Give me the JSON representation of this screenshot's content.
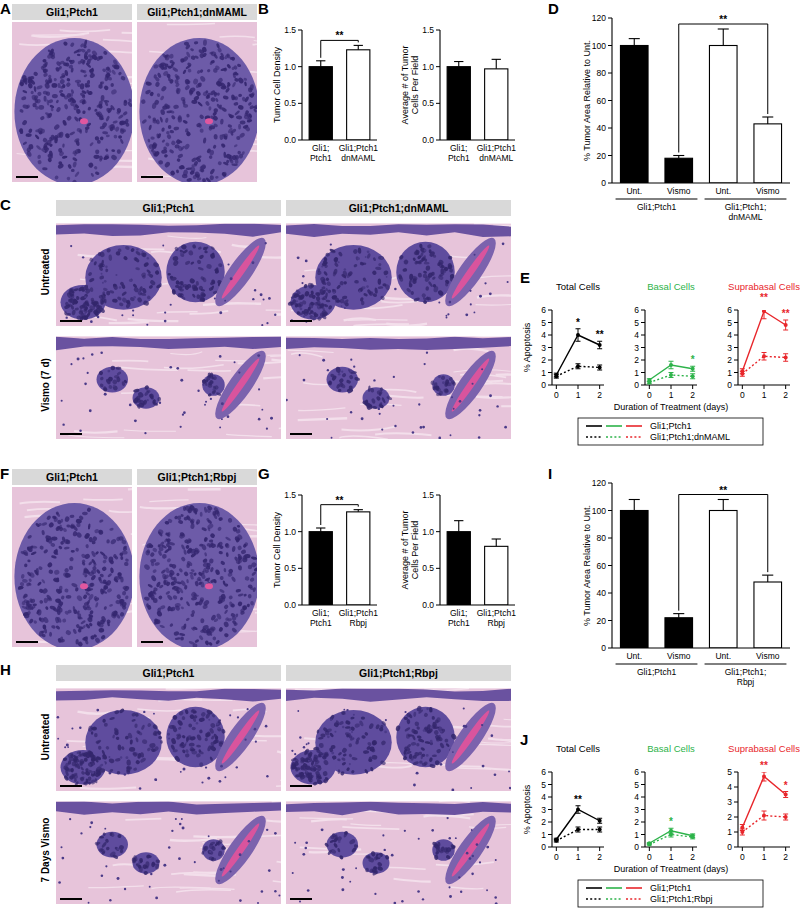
{
  "panel_labels": [
    "A",
    "B",
    "C",
    "D",
    "E",
    "F",
    "G",
    "H",
    "I",
    "J"
  ],
  "image_panels": [
    {
      "headers": [
        "Gli1;Ptch1",
        "Gli1;Ptch1;dnMAML"
      ]
    },
    {
      "headers": [
        "Gli1;Ptch1",
        "Gli1;Ptch1;dnMAML"
      ],
      "row_labels": [
        "Untreated",
        "Vismo (7 d)"
      ]
    },
    {
      "headers": [
        "Gli1;Ptch1",
        "Gli1;Ptch1;Rbpj"
      ]
    },
    {
      "headers": [
        "Gli1;Ptch1",
        "Gli1;Ptch1;Rbpj"
      ],
      "row_labels": [
        "Untreated",
        "7 Days Vismo"
      ]
    }
  ],
  "line_groups": [
    {
      "xlabel": "Duration of Treatment (days)",
      "legend": [
        {
          "label": "Gli1;Ptch1",
          "colors": [
            "#000000",
            "#2db34a",
            "#e8262b"
          ],
          "line_style": "solid"
        },
        {
          "label": "Gli1;Ptch1;dnMAML",
          "colors": [
            "#000000",
            "#2db34a",
            "#e8262b"
          ],
          "line_style": "dotted"
        }
      ]
    },
    {
      "xlabel": "Duration of Treatment (days)",
      "legend": [
        {
          "label": "Gli1;Ptch1",
          "colors": [
            "#000000",
            "#2db34a",
            "#e8262b"
          ],
          "line_style": "solid"
        },
        {
          "label": "Gli1;Ptch1;Rbpj",
          "colors": [
            "#000000",
            "#2db34a",
            "#e8262b"
          ],
          "line_style": "dotted"
        }
      ]
    }
  ],
  "chart_data": [
    {
      "type": "bar",
      "ylabel": "Tumor Cell Density",
      "categories": [
        "Gli1;\nPtch1",
        "Gli1;Ptch1\ndnMAML"
      ],
      "values": [
        1.0,
        1.23
      ],
      "errors": [
        0.08,
        0.06
      ],
      "colors": [
        "#000000",
        "#ffffff"
      ],
      "ylim": [
        0,
        1.5
      ],
      "yticks": [
        {
          "value": 0,
          "label": "0.0"
        },
        0.5,
        {
          "value": 1,
          "label": "1.0"
        },
        1.5
      ],
      "annotations": [
        {
          "text": "**",
          "from": 0,
          "to": 1
        }
      ]
    },
    {
      "type": "bar",
      "ylabel": "Average # of Tumor\nCells Per Field",
      "categories": [
        "Gli1;\nPtch1",
        "Gli1;Ptch1\ndnMAML"
      ],
      "values": [
        1.0,
        0.97
      ],
      "errors": [
        0.07,
        0.13
      ],
      "colors": [
        "#000000",
        "#ffffff"
      ],
      "ylim": [
        0,
        1.5
      ],
      "yticks": [
        {
          "value": 0,
          "label": "0.0"
        },
        0.5,
        {
          "value": 1,
          "label": "1.0"
        },
        1.5
      ]
    },
    {
      "type": "bar",
      "ylabel": "% Tumor Area Relative to Unt.",
      "categories": [
        "Unt.",
        "Vismo",
        "Unt.",
        "Vismo"
      ],
      "groups": [
        {
          "label": "Gli1;Ptch1",
          "from": 0,
          "to": 1
        },
        {
          "label": "Gli1;Ptch1;\ndnMAML",
          "from": 2,
          "to": 3
        }
      ],
      "values": [
        100,
        18,
        100,
        43
      ],
      "errors": [
        5,
        2,
        12,
        5
      ],
      "colors": [
        "#000000",
        "#000000",
        "#ffffff",
        "#ffffff"
      ],
      "ylim": [
        0,
        120
      ],
      "yticks": [
        0,
        20,
        40,
        60,
        80,
        100,
        120
      ],
      "annotations": [
        {
          "text": "**",
          "from": 1,
          "to": 3
        }
      ]
    },
    {
      "type": "line",
      "title": "Total Cells",
      "ylabel": "% Apoptosis",
      "x": [
        0,
        1,
        2
      ],
      "xlim": [
        -0.2,
        2.2
      ],
      "xticks": [
        0,
        1,
        2
      ],
      "ylim": [
        0,
        6
      ],
      "yticks": [
        0,
        1,
        2,
        3,
        4,
        5,
        6
      ],
      "series": [
        {
          "color": "#000000",
          "line_style": "solid",
          "marker": "circle",
          "values": [
            0.8,
            4.0,
            3.2
          ],
          "errors": [
            0.15,
            0.5,
            0.3
          ]
        },
        {
          "color": "#000000",
          "line_style": "dotted",
          "marker": "circle",
          "values": [
            0.7,
            1.5,
            1.4
          ],
          "errors": [
            0.15,
            0.2,
            0.2
          ]
        }
      ],
      "annotations": [
        {
          "text": "*",
          "x": 1
        },
        {
          "text": "**",
          "x": 2
        }
      ]
    },
    {
      "type": "line",
      "title": "Basal Cells",
      "x": [
        0,
        1,
        2
      ],
      "xlim": [
        -0.2,
        2.2
      ],
      "xticks": [
        0,
        1,
        2
      ],
      "ylim": [
        0,
        6
      ],
      "yticks": [
        0,
        1,
        2,
        3,
        4,
        5,
        6
      ],
      "series": [
        {
          "color": "#2db34a",
          "line_style": "solid",
          "marker": "circle",
          "values": [
            0.4,
            1.6,
            1.3
          ],
          "errors": [
            0.1,
            0.3,
            0.2
          ]
        },
        {
          "color": "#2db34a",
          "line_style": "dotted",
          "marker": "circle",
          "values": [
            0.2,
            0.8,
            0.7
          ],
          "errors": [
            0.1,
            0.2,
            0.2
          ]
        }
      ],
      "annotations": [
        {
          "text": "*",
          "x": 2
        }
      ]
    },
    {
      "type": "line",
      "title": "Suprabasal Cells",
      "x": [
        0,
        1,
        2
      ],
      "xlim": [
        -0.2,
        2.2
      ],
      "xticks": [
        0,
        1,
        2
      ],
      "ylim": [
        0,
        6
      ],
      "yticks": [
        0,
        1,
        2,
        3,
        4,
        5,
        6
      ],
      "series": [
        {
          "color": "#e8262b",
          "line_style": "solid",
          "marker": "circle",
          "values": [
            1.1,
            5.9,
            4.8
          ],
          "errors": [
            0.2,
            0.6,
            0.4
          ]
        },
        {
          "color": "#e8262b",
          "line_style": "dotted",
          "marker": "circle",
          "values": [
            0.9,
            2.3,
            2.2
          ],
          "errors": [
            0.2,
            0.3,
            0.3
          ]
        }
      ],
      "annotations": [
        {
          "text": "**",
          "x": 1
        },
        {
          "text": "**",
          "x": 2
        }
      ]
    },
    {
      "type": "bar",
      "ylabel": "Tumor Cell Density",
      "categories": [
        "Gli1;\nPtch1",
        "Gli1;Ptch1\nRbpj"
      ],
      "values": [
        1.0,
        1.27
      ],
      "errors": [
        0.05,
        0.03
      ],
      "colors": [
        "#000000",
        "#ffffff"
      ],
      "ylim": [
        0,
        1.5
      ],
      "yticks": [
        {
          "value": 0,
          "label": "0.0"
        },
        0.5,
        {
          "value": 1,
          "label": "1.0"
        },
        1.5
      ],
      "annotations": [
        {
          "text": "**",
          "from": 0,
          "to": 1
        }
      ]
    },
    {
      "type": "bar",
      "ylabel": "Average # of Tumor\nCells Per Field",
      "categories": [
        "Gli1;\nPtch1",
        "Gli1;Ptch1\nRbpj"
      ],
      "values": [
        1.0,
        0.8
      ],
      "errors": [
        0.15,
        0.1
      ],
      "colors": [
        "#000000",
        "#ffffff"
      ],
      "ylim": [
        0,
        1.5
      ],
      "yticks": [
        {
          "value": 0,
          "label": "0.0"
        },
        0.5,
        {
          "value": 1,
          "label": "1.0"
        },
        1.5
      ]
    },
    {
      "type": "bar",
      "ylabel": "% Tumor Area Relative to Unt.",
      "categories": [
        "Unt.",
        "Vismo",
        "Unt.",
        "Vismo"
      ],
      "groups": [
        {
          "label": "Gli1;Ptch1",
          "from": 0,
          "to": 1
        },
        {
          "label": "Gli1;Ptch1;\nRbpj",
          "from": 2,
          "to": 3
        }
      ],
      "values": [
        100,
        22,
        100,
        48
      ],
      "errors": [
        8,
        3,
        8,
        5
      ],
      "colors": [
        "#000000",
        "#000000",
        "#ffffff",
        "#ffffff"
      ],
      "ylim": [
        0,
        120
      ],
      "yticks": [
        0,
        20,
        40,
        60,
        80,
        100,
        120
      ],
      "annotations": [
        {
          "text": "**",
          "from": 1,
          "to": 3
        }
      ]
    },
    {
      "type": "line",
      "title": "Total Cells",
      "ylabel": "% Apoptosis",
      "x": [
        0,
        1,
        2
      ],
      "xlim": [
        -0.2,
        2.2
      ],
      "xticks": [
        0,
        1,
        2
      ],
      "ylim": [
        0,
        6
      ],
      "yticks": [
        0,
        1,
        2,
        3,
        4,
        5,
        6
      ],
      "series": [
        {
          "color": "#000000",
          "line_style": "solid",
          "marker": "circle",
          "values": [
            0.6,
            3.0,
            2.1
          ],
          "errors": [
            0.1,
            0.3,
            0.2
          ]
        },
        {
          "color": "#000000",
          "line_style": "dotted",
          "marker": "circle",
          "values": [
            0.5,
            1.4,
            1.4
          ],
          "errors": [
            0.1,
            0.2,
            0.2
          ]
        }
      ],
      "annotations": [
        {
          "text": "**",
          "x": 1
        }
      ]
    },
    {
      "type": "line",
      "title": "Basal Cells",
      "x": [
        0,
        1,
        2
      ],
      "xlim": [
        -0.2,
        2.2
      ],
      "xticks": [
        0,
        1,
        2
      ],
      "ylim": [
        0,
        6
      ],
      "yticks": [
        0,
        1,
        2,
        3,
        4,
        5,
        6
      ],
      "series": [
        {
          "color": "#2db34a",
          "line_style": "solid",
          "marker": "circle",
          "values": [
            0.3,
            1.3,
            0.9
          ],
          "errors": [
            0.05,
            0.2,
            0.15
          ]
        },
        {
          "color": "#2db34a",
          "line_style": "dotted",
          "marker": "circle",
          "values": [
            0.2,
            1.0,
            0.8
          ],
          "errors": [
            0.05,
            0.2,
            0.15
          ]
        }
      ],
      "annotations": [
        {
          "text": "*",
          "x": 1
        }
      ]
    },
    {
      "type": "line",
      "title": "Suprabasal Cells",
      "x": [
        0,
        1,
        2
      ],
      "xlim": [
        -0.2,
        2.2
      ],
      "xticks": [
        0,
        1,
        2
      ],
      "ylim": [
        0,
        5
      ],
      "yticks": [
        0,
        1,
        2,
        3,
        4,
        5
      ],
      "series": [
        {
          "color": "#e8262b",
          "line_style": "solid",
          "marker": "circle",
          "values": [
            1.3,
            4.7,
            3.5
          ],
          "errors": [
            0.2,
            0.3,
            0.2
          ]
        },
        {
          "color": "#e8262b",
          "line_style": "dotted",
          "marker": "circle",
          "values": [
            1.0,
            2.1,
            2.0
          ],
          "errors": [
            0.2,
            0.3,
            0.2
          ]
        }
      ],
      "annotations": [
        {
          "text": "**",
          "x": 1
        },
        {
          "text": "*",
          "x": 2
        }
      ]
    }
  ]
}
